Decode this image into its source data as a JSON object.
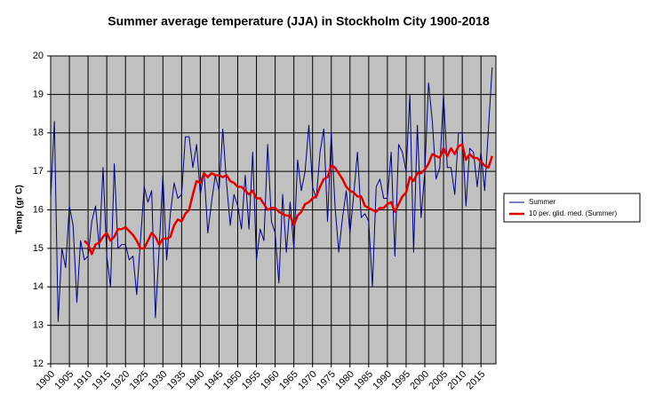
{
  "chart_data": {
    "type": "line",
    "title": "Summer average temperature (JJA) in Stockholm City 1900-2018",
    "y_label": "Temp (gr C)",
    "x": [
      1900,
      1901,
      1902,
      1903,
      1904,
      1905,
      1906,
      1907,
      1908,
      1909,
      1910,
      1911,
      1912,
      1913,
      1914,
      1915,
      1916,
      1917,
      1918,
      1919,
      1920,
      1921,
      1922,
      1923,
      1924,
      1925,
      1926,
      1927,
      1928,
      1929,
      1930,
      1931,
      1932,
      1933,
      1934,
      1935,
      1936,
      1937,
      1938,
      1939,
      1940,
      1941,
      1942,
      1943,
      1944,
      1945,
      1946,
      1947,
      1948,
      1949,
      1950,
      1951,
      1952,
      1953,
      1954,
      1955,
      1956,
      1957,
      1958,
      1959,
      1960,
      1961,
      1962,
      1963,
      1964,
      1965,
      1966,
      1967,
      1968,
      1969,
      1970,
      1971,
      1972,
      1973,
      1974,
      1975,
      1976,
      1977,
      1978,
      1979,
      1980,
      1981,
      1982,
      1983,
      1984,
      1985,
      1986,
      1987,
      1988,
      1989,
      1990,
      1991,
      1992,
      1993,
      1994,
      1995,
      1996,
      1997,
      1998,
      1999,
      2000,
      2001,
      2002,
      2003,
      2004,
      2005,
      2006,
      2007,
      2008,
      2009,
      2010,
      2011,
      2012,
      2013,
      2014,
      2015,
      2016,
      2017,
      2018
    ],
    "series": [
      {
        "name": "Summer",
        "color": "#000080",
        "width": 1,
        "values": [
          16.3,
          18.3,
          13.1,
          15.0,
          14.5,
          16.1,
          15.6,
          13.6,
          15.2,
          14.7,
          14.8,
          15.7,
          16.1,
          15.0,
          17.1,
          14.8,
          14.0,
          17.2,
          15.0,
          15.1,
          15.1,
          14.7,
          14.8,
          13.8,
          15.2,
          16.6,
          16.2,
          16.5,
          13.2,
          15.0,
          16.9,
          14.7,
          15.9,
          16.7,
          16.3,
          16.4,
          17.9,
          17.9,
          17.1,
          17.7,
          16.4,
          17.0,
          15.4,
          16.2,
          16.9,
          16.5,
          18.1,
          16.7,
          15.6,
          16.4,
          16.1,
          15.5,
          16.9,
          15.5,
          17.5,
          14.7,
          15.5,
          15.2,
          17.7,
          15.7,
          15.4,
          14.1,
          16.4,
          14.9,
          16.2,
          15.0,
          17.3,
          16.5,
          17.0,
          18.2,
          16.6,
          16.3,
          17.5,
          18.1,
          15.7,
          18.0,
          16.1,
          14.9,
          15.8,
          16.5,
          15.4,
          16.4,
          17.5,
          15.8,
          15.9,
          15.7,
          14.0,
          16.6,
          16.8,
          16.3,
          16.3,
          17.5,
          14.8,
          17.7,
          17.5,
          17.0,
          19.0,
          14.9,
          18.2,
          15.8,
          17.0,
          19.3,
          18.3,
          16.8,
          17.1,
          19.0,
          17.1,
          17.1,
          16.4,
          18.0,
          18.0,
          16.1,
          17.6,
          17.5,
          16.6,
          17.5,
          16.5,
          18.1,
          19.7
        ]
      },
      {
        "name": "10 per. glid. med. (Summer)",
        "color": "#e00000",
        "width": 2.5,
        "values": [
          null,
          null,
          null,
          null,
          null,
          null,
          null,
          null,
          null,
          15.2,
          15.1,
          14.85,
          15.1,
          15.15,
          15.3,
          15.4,
          15.2,
          15.3,
          15.5,
          15.5,
          15.55,
          15.45,
          15.35,
          15.2,
          15.0,
          15.0,
          15.2,
          15.4,
          15.3,
          15.1,
          15.25,
          15.25,
          15.3,
          15.6,
          15.75,
          15.7,
          15.9,
          16.0,
          16.4,
          16.75,
          16.7,
          16.95,
          16.85,
          16.95,
          16.9,
          16.9,
          16.85,
          16.9,
          16.75,
          16.7,
          16.6,
          16.6,
          16.5,
          16.4,
          16.5,
          16.3,
          16.3,
          16.15,
          16.0,
          16.05,
          16.05,
          15.95,
          15.9,
          15.85,
          15.85,
          15.6,
          15.85,
          15.95,
          16.15,
          16.2,
          16.3,
          16.35,
          16.6,
          16.8,
          16.85,
          17.15,
          17.1,
          16.95,
          16.8,
          16.6,
          16.5,
          16.45,
          16.35,
          16.35,
          16.1,
          16.05,
          16.0,
          15.95,
          16.05,
          16.05,
          16.15,
          16.2,
          15.95,
          16.15,
          16.35,
          16.45,
          16.85,
          16.75,
          16.95,
          16.95,
          17.05,
          17.2,
          17.45,
          17.4,
          17.35,
          17.6,
          17.4,
          17.6,
          17.45,
          17.65,
          17.7,
          17.3,
          17.45,
          17.35,
          17.35,
          17.25,
          17.15,
          17.1,
          17.4
        ]
      }
    ],
    "xlim": [
      1900,
      2019
    ],
    "xticks": [
      1900,
      1905,
      1910,
      1915,
      1920,
      1925,
      1930,
      1935,
      1940,
      1945,
      1950,
      1955,
      1960,
      1965,
      1970,
      1975,
      1980,
      1985,
      1990,
      1995,
      2000,
      2005,
      2010,
      2015
    ],
    "ylim": [
      12,
      20
    ],
    "yticks": [
      12,
      13,
      14,
      15,
      16,
      17,
      18,
      19,
      20
    ],
    "grid": true,
    "background": "#c0c0c0",
    "legend": "right"
  }
}
